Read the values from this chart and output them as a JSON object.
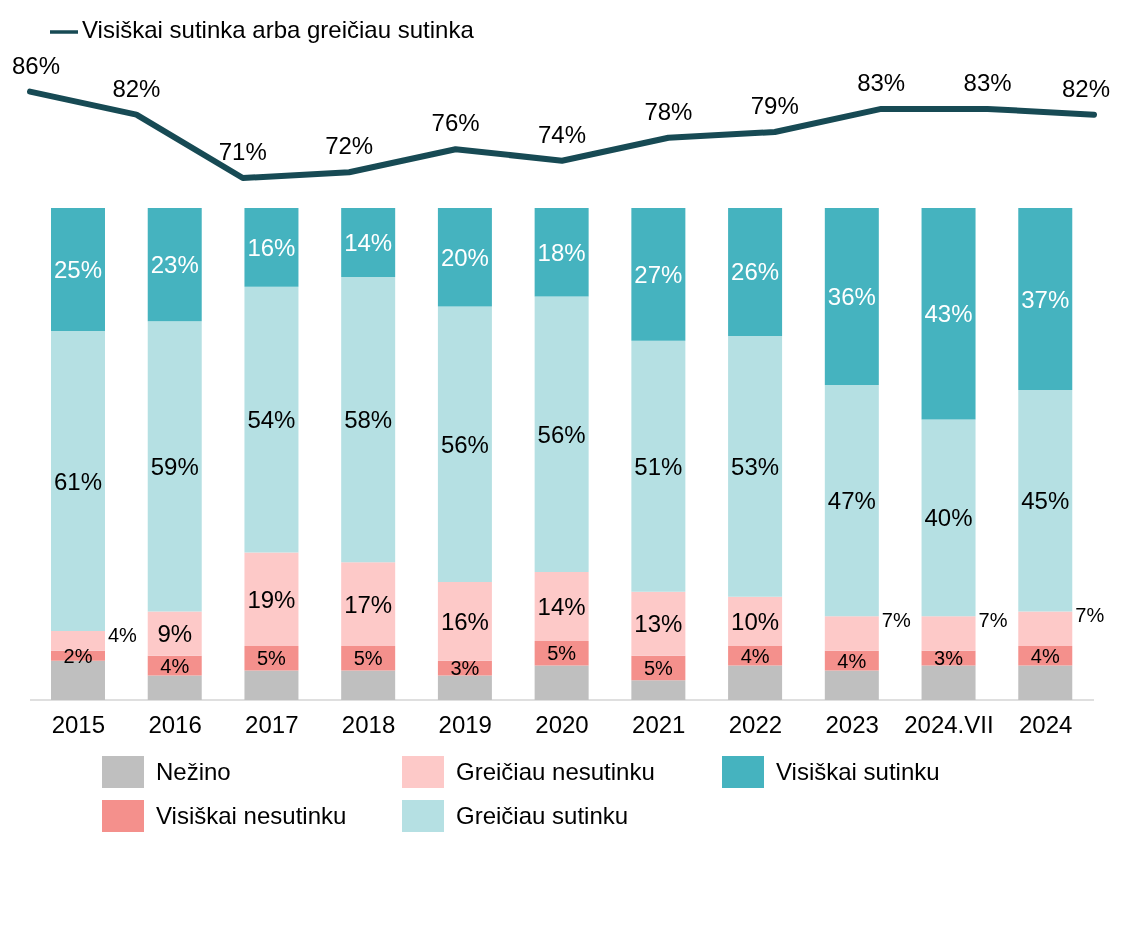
{
  "chart_data": [
    {
      "type": "line",
      "categories": [
        null,
        null,
        null,
        null,
        null,
        null,
        null,
        null,
        null,
        null,
        null
      ],
      "series": [
        {
          "name": "Visiškai sutinka arba greičiau sutinka",
          "color": "#174a54",
          "values": [
            86,
            82,
            71,
            72,
            76,
            74,
            78,
            79,
            83,
            83,
            82
          ],
          "value_labels": [
            "86%",
            "82%",
            "71%",
            "72%",
            "76%",
            "74%",
            "78%",
            "79%",
            "83%",
            "83%",
            "82%"
          ]
        }
      ],
      "legend": "top left",
      "marker": "none",
      "line_style": "solid",
      "tick_labels": false
    },
    {
      "type": "bar",
      "stacked": true,
      "categories": [
        "2015",
        "2016",
        "2017",
        "2018",
        "2019",
        "2020",
        "2021",
        "2022",
        "2023",
        "2024.VII",
        "2024"
      ],
      "series": [
        {
          "name": "Nežino",
          "color": "#bfbfbf",
          "values": [
            8,
            5,
            6,
            6,
            5,
            7,
            4,
            7,
            6,
            7,
            7
          ],
          "value_labels": [
            null,
            null,
            null,
            null,
            null,
            null,
            null,
            null,
            null,
            null,
            null
          ]
        },
        {
          "name": "Visiškai nesutinku",
          "color": "#f4908c",
          "values": [
            2,
            4,
            5,
            5,
            3,
            5,
            5,
            4,
            4,
            3,
            4
          ],
          "value_labels": [
            "2%",
            "4%",
            "5%",
            "5%",
            "3%",
            "5%",
            "5%",
            "4%",
            "4%",
            "3%",
            "4%"
          ]
        },
        {
          "name": "Greičiau nesutinku",
          "color": "#fdc9c8",
          "values": [
            4,
            9,
            19,
            17,
            16,
            14,
            13,
            10,
            7,
            7,
            7
          ],
          "value_labels": [
            "4%",
            "9%",
            "19%",
            "17%",
            "16%",
            "14%",
            "13%",
            "10%",
            "7%",
            "7%",
            "7%"
          ]
        },
        {
          "name": "Greičiau sutinku",
          "color": "#b5e0e3",
          "values": [
            61,
            59,
            54,
            58,
            56,
            56,
            51,
            53,
            47,
            40,
            45
          ],
          "value_labels": [
            "61%",
            "59%",
            "54%",
            "58%",
            "56%",
            "56%",
            "51%",
            "53%",
            "47%",
            "40%",
            "45%"
          ]
        },
        {
          "name": "Visiškai sutinku",
          "color": "#45b3bf",
          "values": [
            25,
            23,
            16,
            14,
            20,
            18,
            27,
            26,
            36,
            43,
            37
          ],
          "value_labels": [
            "25%",
            "23%",
            "16%",
            "14%",
            "20%",
            "18%",
            "27%",
            "26%",
            "36%",
            "43%",
            "37%"
          ]
        }
      ],
      "legend": "bottom"
    }
  ]
}
